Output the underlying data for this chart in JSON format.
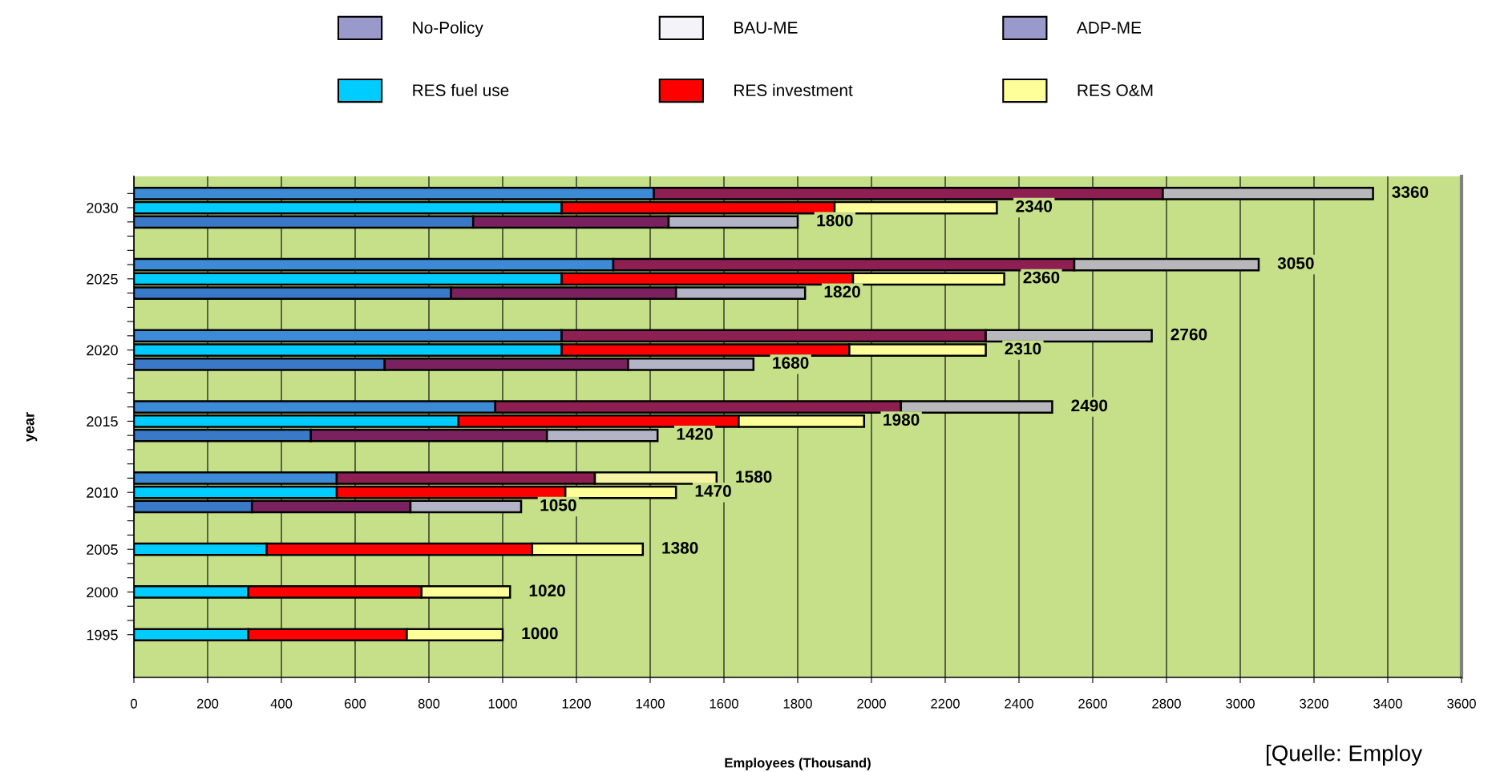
{
  "chart_data": {
    "type": "bar",
    "orientation": "horizontal",
    "stacked": true,
    "xlabel": "Employees (Thousand)",
    "ylabel": "year",
    "categories": [
      null,
      "2030",
      null,
      null,
      null,
      null,
      "2025",
      null,
      null,
      null,
      null,
      "2020",
      null,
      null,
      null,
      null,
      "2015",
      null,
      null,
      null,
      null,
      "2010",
      null,
      null,
      null,
      "2005",
      null,
      null,
      "2000",
      null,
      null,
      "1995"
    ],
    "series": [
      {
        "name": "No-Policy",
        "color": "#9999cc",
        "values": [
          null,
          null,
          null,
          null,
          null,
          null,
          null,
          null,
          null,
          null,
          null,
          null,
          null,
          null,
          null,
          null,
          null,
          null,
          null,
          null,
          null,
          null,
          null,
          null,
          null,
          null,
          null,
          null,
          null,
          null,
          null,
          null
        ]
      },
      {
        "name": "BAU-ME",
        "color": "#f4f4f8",
        "values": [
          null,
          null,
          null,
          null,
          null,
          null,
          null,
          null,
          null,
          null,
          null,
          null,
          null,
          null,
          null,
          null,
          null,
          null,
          null,
          null,
          null,
          null,
          null,
          null,
          null,
          null,
          null,
          null,
          null,
          null,
          null,
          null
        ]
      },
      {
        "name": "ADP-ME",
        "color": "#9999cc",
        "values": [
          null,
          null,
          null,
          null,
          null,
          null,
          null,
          null,
          null,
          null,
          null,
          null,
          null,
          null,
          null,
          null,
          null,
          null,
          null,
          null,
          null,
          null,
          null,
          null,
          null,
          null,
          null,
          null,
          null,
          null,
          null,
          null
        ]
      },
      {
        "name": "RES fuel use",
        "color": "#00ccff",
        "values": [
          1410,
          1160,
          920,
          null,
          null,
          1300,
          1160,
          860,
          null,
          null,
          1160,
          1160,
          680,
          null,
          null,
          980,
          880,
          480,
          null,
          null,
          550,
          550,
          320,
          null,
          null,
          360,
          null,
          null,
          310,
          null,
          null,
          310
        ],
        "colors": [
          "#3d8bd6",
          "#00ccff",
          "#3a78c8",
          null,
          null,
          "#3d8bd6",
          "#00ccff",
          "#3a78c8",
          null,
          null,
          "#3d8bd6",
          "#00ccff",
          "#3a78c8",
          null,
          null,
          "#3d8bd6",
          "#00ccff",
          "#3a78c8",
          null,
          null,
          "#3d8bd6",
          "#00ccff",
          "#3a78c8",
          null,
          null,
          "#00ccff",
          null,
          null,
          "#00ccff",
          null,
          null,
          "#00ccff"
        ]
      },
      {
        "name": "RES investment",
        "color": "#ff0000",
        "values": [
          1380,
          740,
          530,
          null,
          null,
          1250,
          790,
          610,
          null,
          null,
          1150,
          780,
          660,
          null,
          null,
          1100,
          760,
          640,
          null,
          null,
          700,
          620,
          430,
          null,
          null,
          720,
          null,
          null,
          470,
          null,
          null,
          430
        ],
        "colors": [
          "#8e1f52",
          "#ff0000",
          "#7a2260",
          null,
          null,
          "#8e1f52",
          "#ff0000",
          "#7a2260",
          null,
          null,
          "#8e1f52",
          "#ff0000",
          "#7a2260",
          null,
          null,
          "#8e1f52",
          "#ff0000",
          "#7a2260",
          null,
          null,
          "#8e1f52",
          "#ff0000",
          "#7a2260",
          null,
          null,
          "#ff0000",
          null,
          null,
          "#ff0000",
          null,
          null,
          "#ff0000"
        ]
      },
      {
        "name": "RES O&M",
        "color": "#ffff99",
        "values": [
          570,
          440,
          350,
          null,
          null,
          500,
          410,
          350,
          null,
          null,
          450,
          370,
          340,
          null,
          null,
          410,
          340,
          300,
          null,
          null,
          330,
          300,
          300,
          null,
          null,
          300,
          null,
          null,
          240,
          null,
          null,
          260
        ],
        "colors": [
          "#b8b8bc",
          "#ffff99",
          "#b4b4c8",
          null,
          null,
          "#b8b8bc",
          "#ffff99",
          "#b4b4c8",
          null,
          null,
          "#b8b8bc",
          "#ffff99",
          "#b4b4c8",
          null,
          null,
          "#b8b8bc",
          "#ffff99",
          "#b4b4c8",
          null,
          null,
          "#f4f4a4",
          "#ffff99",
          "#b4b4c8",
          null,
          null,
          "#ffff99",
          null,
          null,
          "#ffff99",
          null,
          null,
          "#ffff99"
        ]
      }
    ],
    "totals": [
      "3360",
      "2340",
      "1800",
      null,
      null,
      "3050",
      "2360",
      "1820",
      null,
      null,
      "2760",
      "2310",
      "1680",
      null,
      null,
      "2490",
      "1980",
      "1420",
      null,
      null,
      "1580",
      "1470",
      "1050",
      null,
      null,
      "1380",
      null,
      null,
      "1020",
      null,
      null,
      "1000"
    ],
    "xlim": [
      0,
      3600
    ],
    "xticks": [
      0,
      200,
      400,
      600,
      800,
      1000,
      1200,
      1400,
      1600,
      1800,
      2000,
      2200,
      2400,
      2600,
      2800,
      3000,
      3200,
      3400,
      3600
    ],
    "grid": "x",
    "legend": "top",
    "annotations": [
      "[Quelle: Employ"
    ]
  }
}
